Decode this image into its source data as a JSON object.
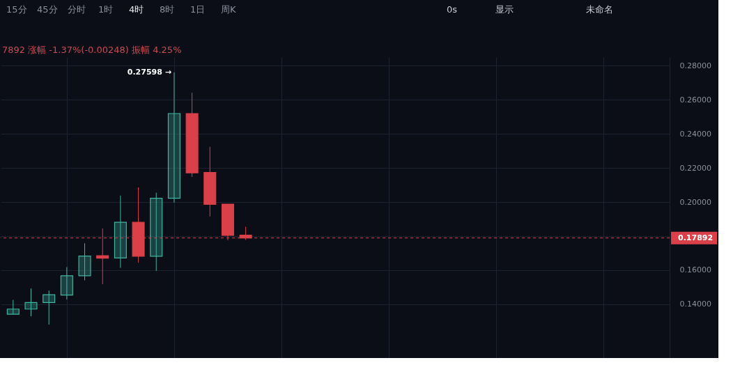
{
  "chart_data": {
    "type": "candlestick",
    "categories": [
      null,
      null,
      null,
      null,
      null,
      null,
      null,
      null,
      null,
      null,
      null,
      null,
      null,
      null,
      null,
      null,
      null,
      null,
      null,
      null,
      null,
      null,
      null,
      null,
      null,
      null,
      null,
      null,
      null,
      null,
      null,
      null,
      null,
      null,
      null,
      null,
      null
    ],
    "ohlc": [
      [
        0.1342,
        0.1426,
        0.134,
        0.1372
      ],
      [
        0.1372,
        0.1493,
        0.133,
        0.141
      ],
      [
        0.141,
        0.1481,
        0.1281,
        0.1456
      ],
      [
        0.1454,
        0.1618,
        0.1428,
        0.1568
      ],
      [
        0.1568,
        0.1758,
        0.1541,
        0.1683
      ],
      [
        0.1685,
        0.1845,
        0.1518,
        0.1671
      ],
      [
        0.1672,
        0.2038,
        0.1614,
        0.1881
      ],
      [
        0.1881,
        0.2086,
        0.1644,
        0.1682
      ],
      [
        0.1682,
        0.2055,
        0.1596,
        0.2022
      ],
      [
        0.2022,
        0.27598,
        0.1996,
        0.2519
      ],
      [
        0.2519,
        0.2641,
        0.2147,
        0.2171
      ],
      [
        0.2173,
        0.2324,
        0.1915,
        0.1986
      ],
      [
        0.1988,
        0.1988,
        0.1776,
        0.1804
      ],
      [
        0.1806,
        0.1855,
        0.1778,
        0.17892
      ],
      null,
      null,
      null,
      null,
      null,
      null,
      null,
      null,
      null,
      null,
      null,
      null,
      null,
      null,
      null,
      null,
      null,
      null,
      null,
      null,
      null,
      null,
      null
    ],
    "colors": [
      "#3fb6a2",
      "#3fb6a2",
      "#3fb6a2",
      "#3fb6a2",
      "#3fb6a2",
      "#d9404a",
      "#3fb6a2",
      "#d9404a",
      "#3fb6a2",
      "#3fb6a2",
      "#d9404a",
      "#d9404a",
      "#d9404a",
      "#d9404a",
      null,
      null,
      null,
      null,
      null,
      null,
      null,
      null,
      null,
      null,
      null,
      null,
      null,
      null,
      null,
      null,
      null,
      null,
      null,
      null,
      null,
      null,
      null
    ],
    "ylim": [
      0.1085,
      0.285
    ],
    "yticks": [
      {
        "value": 0.14,
        "label": "0.14000"
      },
      {
        "value": 0.16,
        "label": "0.16000"
      },
      {
        "value": 0.18,
        "label": null
      },
      {
        "value": 0.2,
        "label": "0.20000"
      },
      {
        "value": 0.22,
        "label": "0.22000"
      },
      {
        "value": 0.24,
        "label": "0.24000"
      },
      {
        "value": 0.26,
        "label": "0.26000"
      },
      {
        "value": 0.28,
        "label": "0.28000"
      }
    ],
    "tick_labels": "y",
    "grid": true,
    "ref_lines": [
      {
        "axis": "y",
        "value": 0.17892,
        "label": "0.17892",
        "color": "#d9404a",
        "line_style": "dashed"
      }
    ],
    "annotations": [
      "15分",
      "45分",
      "分时",
      "1时",
      "4时",
      "8时",
      "1日",
      "周K",
      "0s",
      "显示",
      "未命名",
      "7892 涨幅 -1.37%(-0.00248) 振幅 4.25%",
      "0.27598 →"
    ]
  }
}
